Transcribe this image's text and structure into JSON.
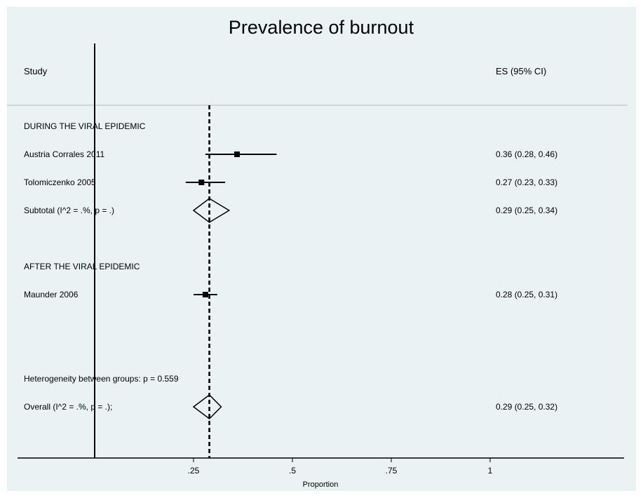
{
  "chart_data": {
    "type": "forest",
    "title": "Prevalence of burnout",
    "column_headers": {
      "study": "Study",
      "effect": "ES (95% CI)"
    },
    "xlabel": "Proportion",
    "x_ticks": [
      {
        "value": 0.25,
        "label": ".25"
      },
      {
        "value": 0.5,
        "label": ".5"
      },
      {
        "value": 0.75,
        "label": ".75"
      },
      {
        "value": 1,
        "label": "1"
      }
    ],
    "null_line": 0,
    "overall_line": 0.29,
    "rows": [
      {
        "kind": "group",
        "label": "DURING THE VIRAL EPIDEMIC"
      },
      {
        "kind": "study",
        "label": "Austria Corrales 2011",
        "es": 0.36,
        "lo": 0.28,
        "hi": 0.46,
        "text": "0.36 (0.28, 0.46)"
      },
      {
        "kind": "study",
        "label": "Tolomiczenko 2005",
        "es": 0.27,
        "lo": 0.23,
        "hi": 0.33,
        "text": "0.27 (0.23, 0.33)"
      },
      {
        "kind": "subtotal",
        "label": "Subtotal  (I^2 = .%, p = .)",
        "es": 0.29,
        "lo": 0.25,
        "hi": 0.34,
        "text": "0.29 (0.25, 0.34)"
      },
      {
        "kind": "blank"
      },
      {
        "kind": "group",
        "label": "AFTER THE VIRAL EPIDEMIC"
      },
      {
        "kind": "study",
        "label": "Maunder 2006",
        "es": 0.28,
        "lo": 0.25,
        "hi": 0.31,
        "text": "0.28 (0.25, 0.31)"
      },
      {
        "kind": "blank"
      },
      {
        "kind": "blank"
      },
      {
        "kind": "heterogeneity",
        "label": "Heterogeneity between groups: p = 0.559"
      },
      {
        "kind": "overall",
        "label": "Overall  (I^2 = .%, p = .);",
        "es": 0.29,
        "lo": 0.25,
        "hi": 0.32,
        "text": "0.29 (0.25, 0.32)"
      }
    ]
  }
}
